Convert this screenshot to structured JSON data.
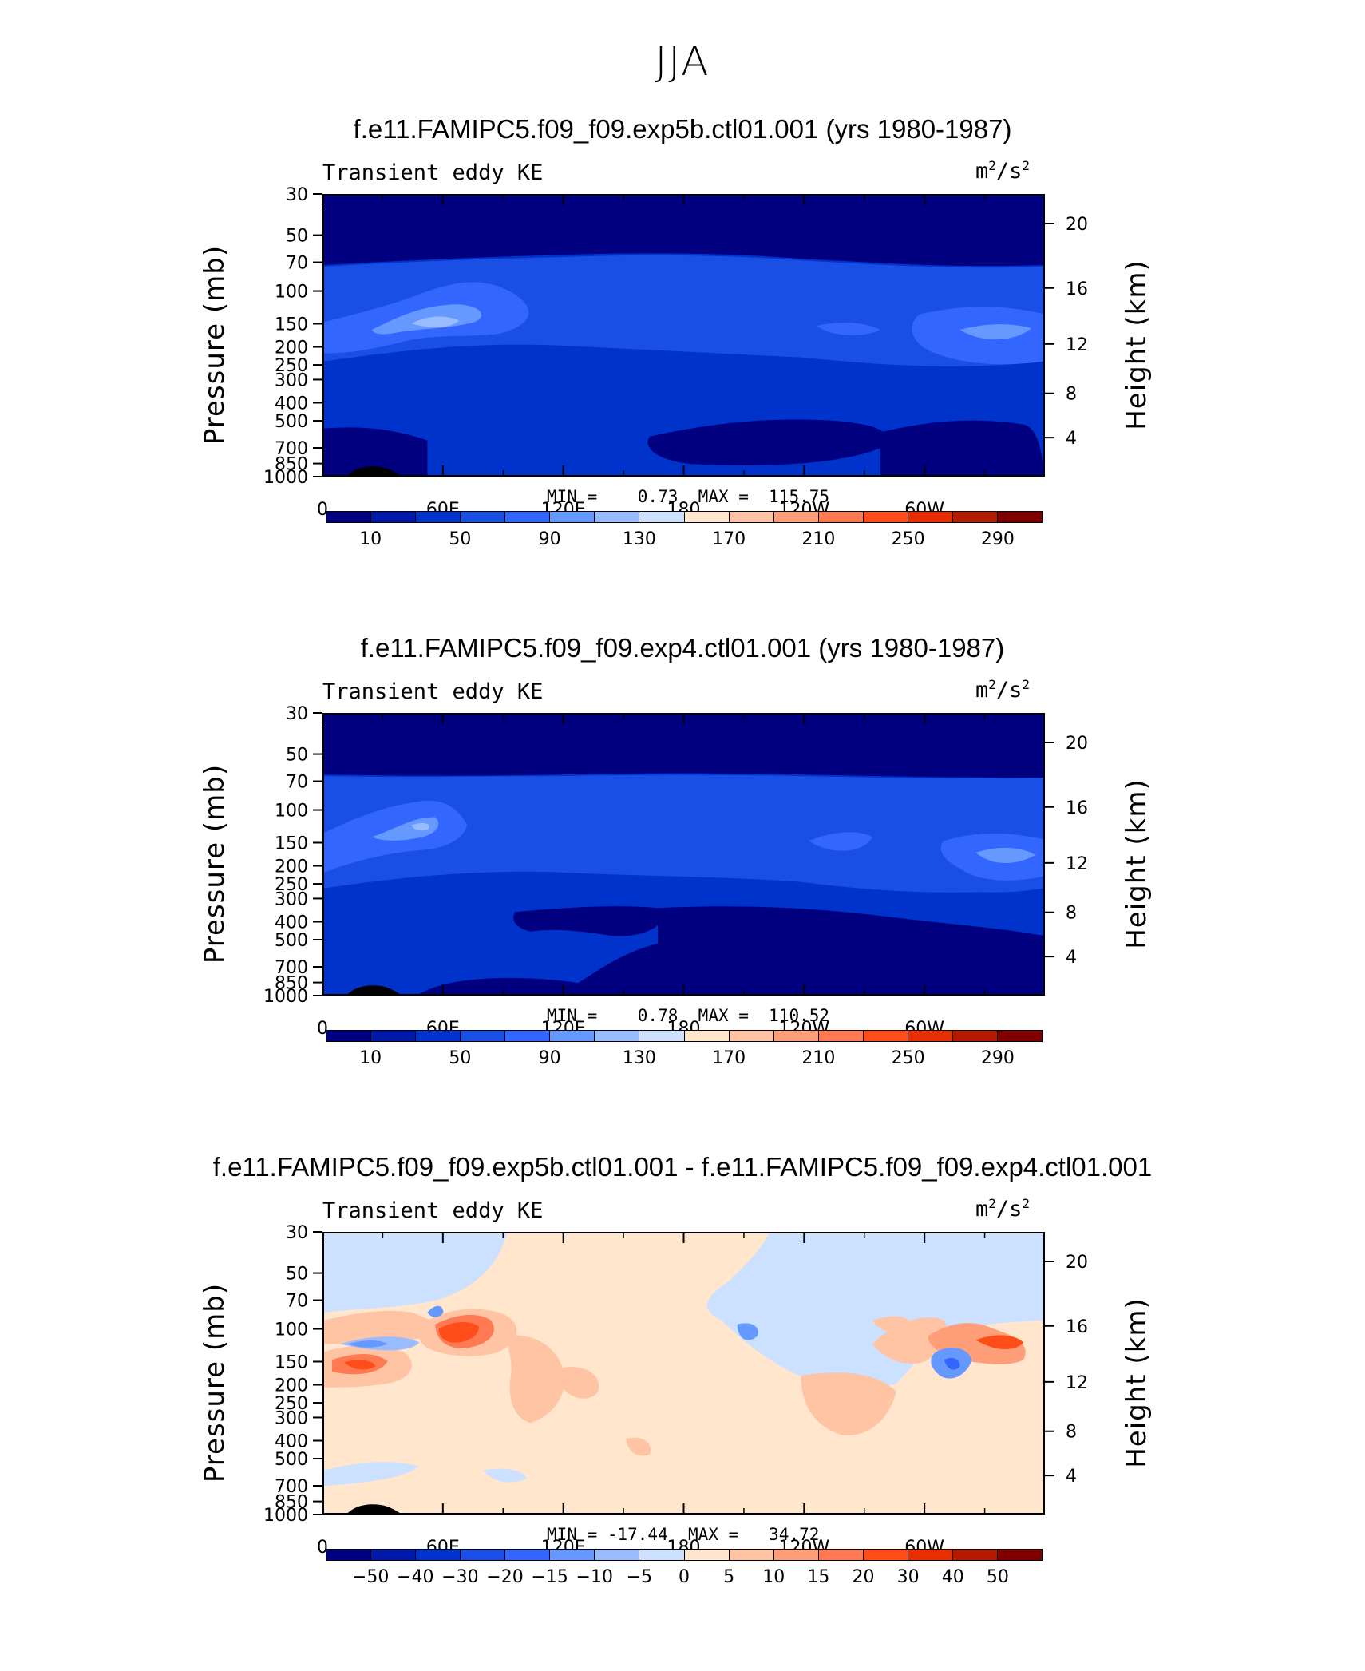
{
  "page_title": "JJA",
  "chart_data": [
    {
      "type": "heatmap",
      "title": "f.e11.FAMIPC5.f09_f09.exp5b.ctl01.001 (yrs 1980-1987)",
      "variable": "Transient eddy KE",
      "units": "m2/s2",
      "ylabel": "Pressure (mb)",
      "ylabel_right": "Height (km)",
      "y_ticks_pressure": [
        "30",
        "50",
        "70",
        "100",
        "150",
        "200",
        "250",
        "300",
        "400",
        "500",
        "700",
        "850",
        "1000"
      ],
      "y_ticks_height": [
        "20",
        "16",
        "12",
        "8",
        "4"
      ],
      "x_ticks": [
        "0",
        "60E",
        "120E",
        "180",
        "120W",
        "60W"
      ],
      "min_label": "MIN =    0.73",
      "max_label": "MAX =  115.75",
      "min": 0.73,
      "max": 115.75,
      "colorbar_labels": [
        "10",
        "50",
        "90",
        "130",
        "170",
        "210",
        "250",
        "290"
      ]
    },
    {
      "type": "heatmap",
      "title": "f.e11.FAMIPC5.f09_f09.exp4.ctl01.001 (yrs 1980-1987)",
      "variable": "Transient eddy KE",
      "units": "m2/s2",
      "ylabel": "Pressure (mb)",
      "ylabel_right": "Height (km)",
      "y_ticks_pressure": [
        "30",
        "50",
        "70",
        "100",
        "150",
        "200",
        "250",
        "300",
        "400",
        "500",
        "700",
        "850",
        "1000"
      ],
      "y_ticks_height": [
        "20",
        "16",
        "12",
        "8",
        "4"
      ],
      "x_ticks": [
        "0",
        "60E",
        "120E",
        "180",
        "120W",
        "60W"
      ],
      "min_label": "MIN =    0.78",
      "max_label": "MAX =  110.52",
      "min": 0.78,
      "max": 110.52,
      "colorbar_labels": [
        "10",
        "50",
        "90",
        "130",
        "170",
        "210",
        "250",
        "290"
      ]
    },
    {
      "type": "heatmap",
      "title": "f.e11.FAMIPC5.f09_f09.exp5b.ctl01.001 - f.e11.FAMIPC5.f09_f09.exp4.ctl01.001",
      "variable": "Transient eddy KE",
      "units": "m2/s2",
      "ylabel": "Pressure (mb)",
      "ylabel_right": "Height (km)",
      "y_ticks_pressure": [
        "30",
        "50",
        "70",
        "100",
        "150",
        "200",
        "250",
        "300",
        "400",
        "500",
        "700",
        "850",
        "1000"
      ],
      "y_ticks_height": [
        "20",
        "16",
        "12",
        "8",
        "4"
      ],
      "x_ticks": [
        "0",
        "60E",
        "120E",
        "180",
        "120W",
        "60W"
      ],
      "min_label": "MIN = -17.44",
      "max_label": "MAX =   34.72",
      "min": -17.44,
      "max": 34.72,
      "colorbar_labels": [
        "−50",
        "−40",
        "−30",
        "−20",
        "−15",
        "−10",
        "−5",
        "0",
        "5",
        "10",
        "15",
        "20",
        "30",
        "40",
        "50"
      ]
    }
  ],
  "colors": {
    "seq": [
      "#000080",
      "#0019a8",
      "#0033cc",
      "#1a4fe6",
      "#3366ff",
      "#6699ff",
      "#99bbff",
      "#cce0ff",
      "#ffe6cc",
      "#ffc4a3",
      "#ff9f7a",
      "#ff7a52",
      "#ff4d1a",
      "#e62e00",
      "#b31a00",
      "#800000"
    ],
    "div": [
      "#000080",
      "#0019a8",
      "#0033cc",
      "#1a4fe6",
      "#3366ff",
      "#6699ff",
      "#99bbff",
      "#cce0ff",
      "#ffe6cc",
      "#ffc4a3",
      "#ff9f7a",
      "#ff7a52",
      "#ff4d1a",
      "#e62e00",
      "#b31a00",
      "#800000"
    ]
  }
}
